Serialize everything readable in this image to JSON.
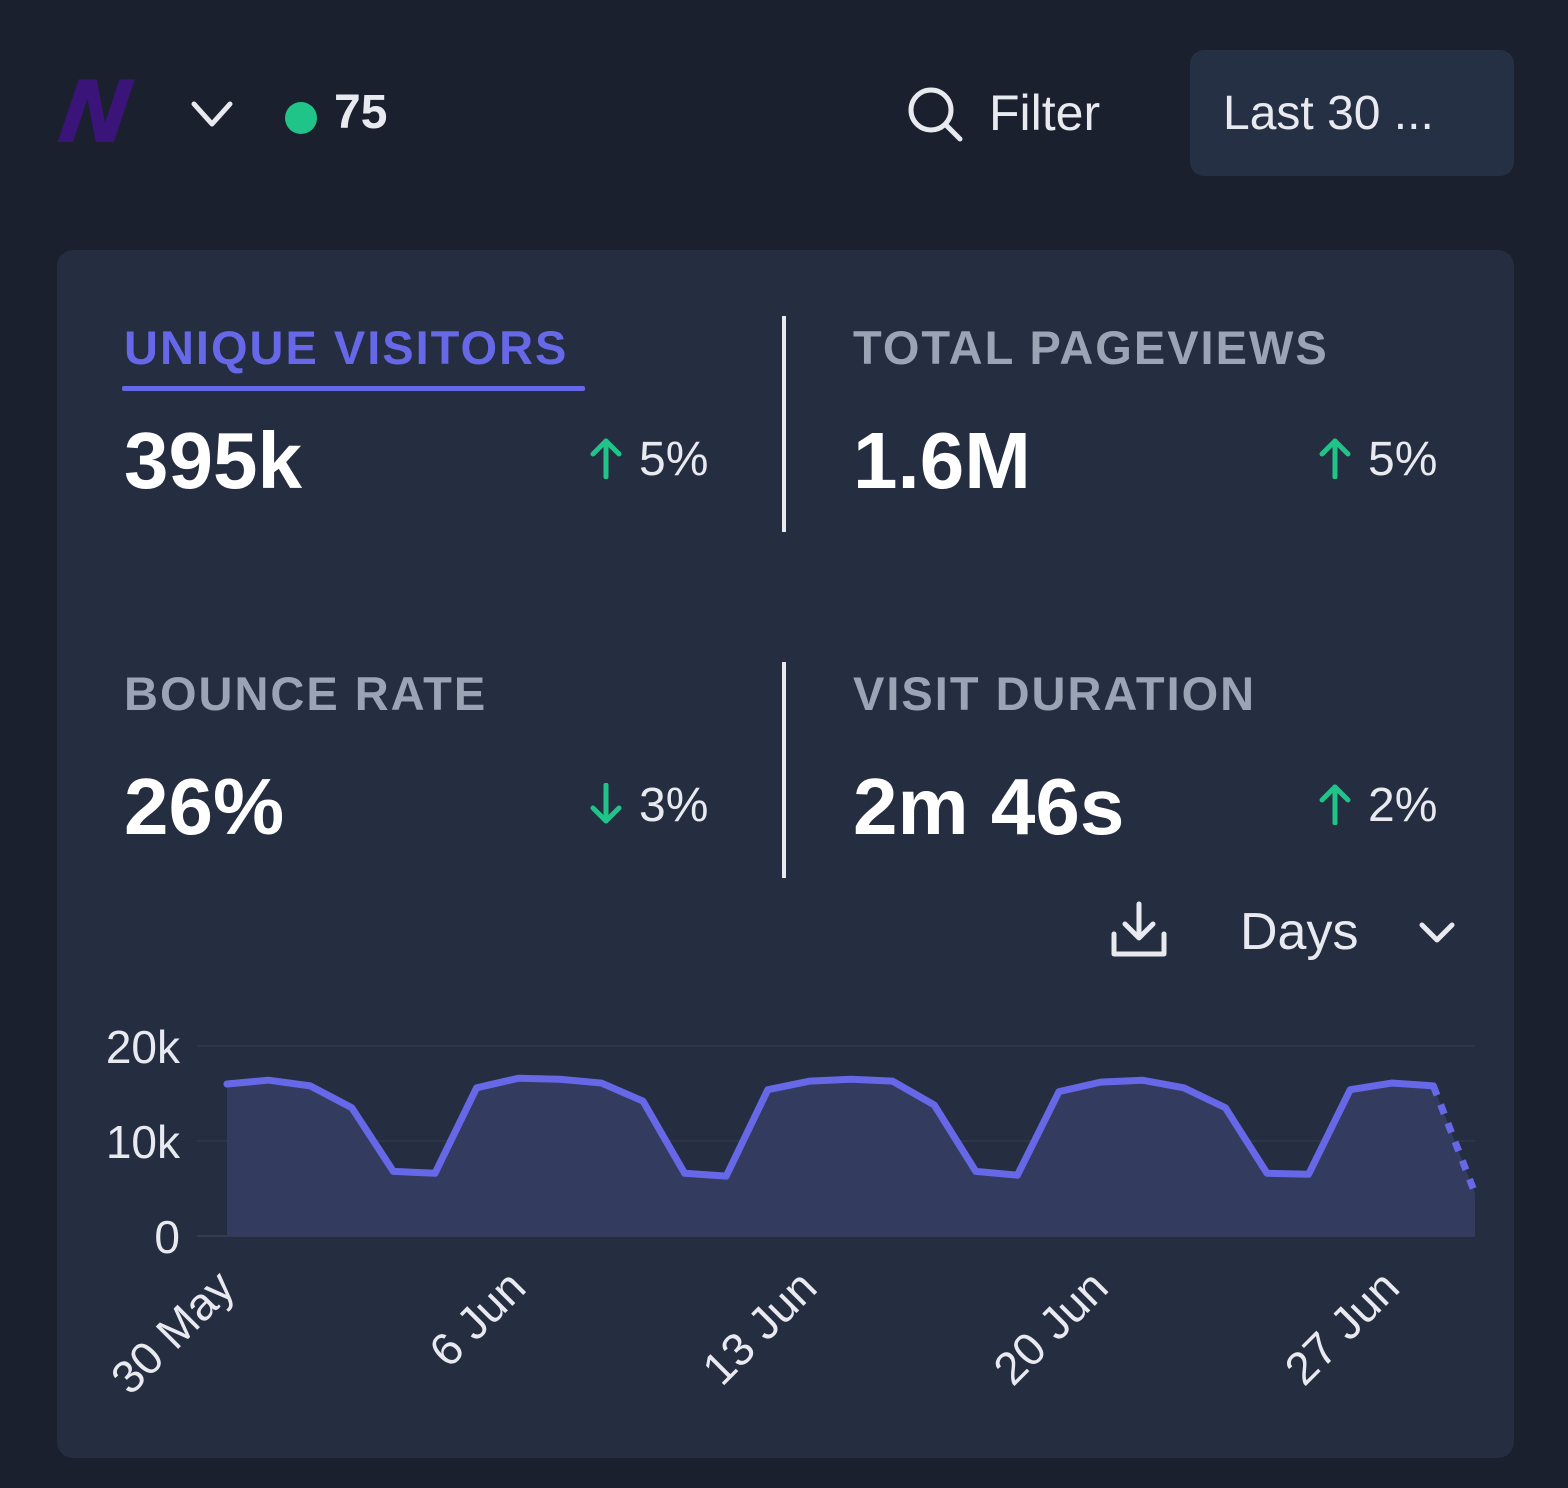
{
  "header": {
    "logo_text": "N",
    "live_visitors": "75",
    "filter_label": "Filter",
    "period_label": "Last 30 ..."
  },
  "colors": {
    "background": "#1a202d",
    "card": "#252d40",
    "accent": "#6668e8",
    "positive": "#20c488",
    "live_dot": "#20c488",
    "logo": "#3a1478"
  },
  "stats": [
    {
      "label": "UNIQUE VISITORS",
      "value": "395k",
      "change": "5%",
      "direction": "up",
      "active": true
    },
    {
      "label": "TOTAL PAGEVIEWS",
      "value": "1.6M",
      "change": "5%",
      "direction": "up",
      "active": false
    },
    {
      "label": "BOUNCE RATE",
      "value": "26%",
      "change": "3%",
      "direction": "down",
      "active": false
    },
    {
      "label": "VISIT DURATION",
      "value": "2m 46s",
      "change": "2%",
      "direction": "up",
      "active": false
    }
  ],
  "controls": {
    "download_icon": "download-icon",
    "interval_label": "Days"
  },
  "chart_data": {
    "type": "area",
    "x_start": "30 May",
    "x_end": "29 Jun",
    "x_tick_labels": [
      "30 May",
      "6 Jun",
      "13 Jun",
      "20 Jun",
      "27 Jun"
    ],
    "y_tick_labels": [
      "0",
      "10k",
      "20k"
    ],
    "ylim": [
      0,
      20000
    ],
    "grid": true,
    "series": [
      {
        "values": [
          16000,
          16400,
          15800,
          13500,
          6800,
          6600,
          15600,
          16600,
          16500,
          16100,
          14200,
          6600,
          6300,
          15400,
          16300,
          16500,
          16300,
          13800,
          6800,
          6400,
          15200,
          16200,
          16400,
          15600,
          13500,
          6600,
          6500,
          15400,
          16100,
          15800,
          4500
        ],
        "last_point_incomplete": true
      }
    ]
  }
}
